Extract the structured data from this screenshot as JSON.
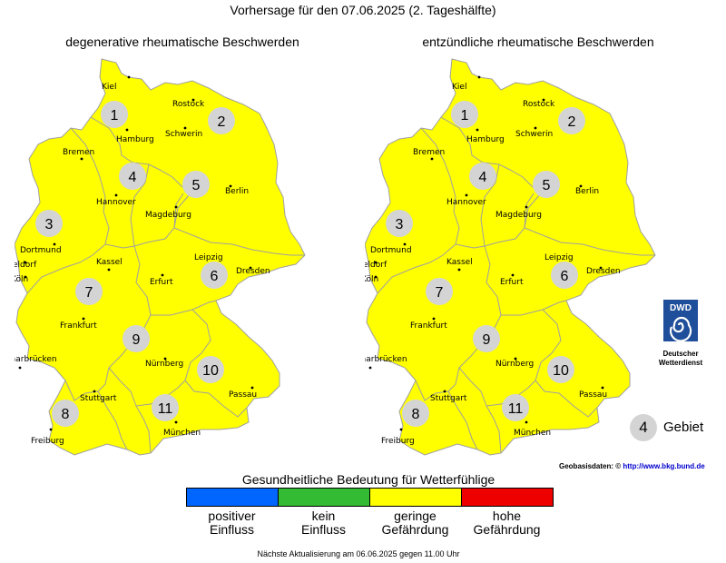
{
  "title": "Vorhersage für den 07.06.2025 (2. Tageshälfte)",
  "maps": [
    {
      "title": "degenerative rheumatische Beschwerden",
      "hazard_level": "geringe Gefährdung"
    },
    {
      "title": "entzündliche rheumatische Beschwerden",
      "hazard_level": "geringe Gefährdung"
    }
  ],
  "cities": [
    "Kiel",
    "Rostock",
    "Hamburg",
    "Schwerin",
    "Bremen",
    "Hannover",
    "Berlin",
    "Magdeburg",
    "Dortmund",
    "Düsseldorf",
    "Köln",
    "Kassel",
    "Leipzig",
    "Dresden",
    "Erfurt",
    "Frankfurt",
    "Saarbrücken",
    "Nürnberg",
    "Passau",
    "Stuttgart",
    "München",
    "Freiburg"
  ],
  "regions": [
    "1",
    "2",
    "3",
    "4",
    "5",
    "6",
    "7",
    "8",
    "9",
    "10",
    "11"
  ],
  "colors": {
    "map_fill": "#ffff00",
    "region_border": "#a0a0a0"
  },
  "dwd": {
    "logo_text": "DWD",
    "line1": "Deutscher",
    "line2": "Wetterdienst"
  },
  "legend": {
    "region_example": "4",
    "region_label": "Gebiet"
  },
  "source": {
    "label": "Geobasisdaten: ©",
    "link": "http://www.bkg.bund.de"
  },
  "scale": {
    "title": "Gesundheitliche Bedeutung für Wetterfühlige",
    "items": [
      {
        "color": "#0066ff",
        "line1": "positiver",
        "line2": "Einfluss"
      },
      {
        "color": "#33bb33",
        "line1": "kein",
        "line2": "Einfluss"
      },
      {
        "color": "#ffff00",
        "line1": "geringe",
        "line2": "Gefährdung"
      },
      {
        "color": "#ee0000",
        "line1": "hohe",
        "line2": "Gefährdung"
      }
    ]
  },
  "footer": "Nächste Aktualisierung am 06.06.2025 gegen 11.00 Uhr"
}
